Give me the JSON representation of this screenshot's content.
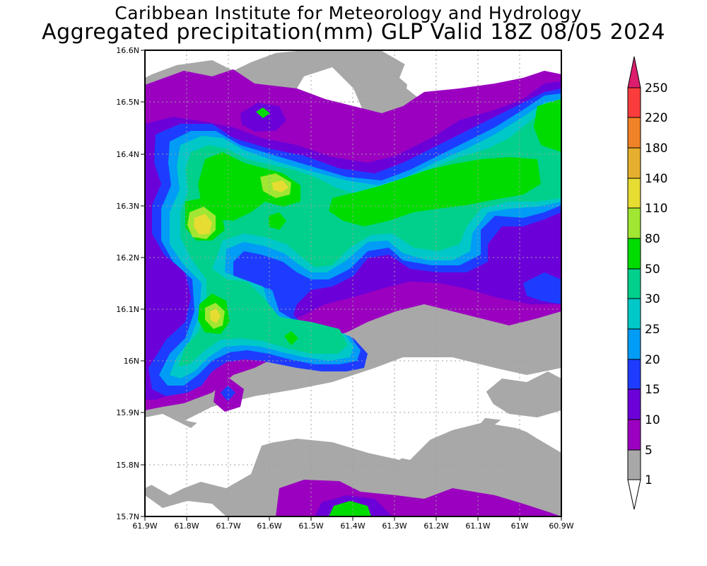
{
  "title": {
    "line1": "Caribbean Institute for Meteorology and Hydrology",
    "line2": "Aggregated precipitation(mm) GLP Valid 18Z 08/05 2024"
  },
  "map": {
    "lon_range": [
      -61.9,
      -60.9
    ],
    "lat_range": [
      15.7,
      16.6
    ],
    "grid": true,
    "x_tick_labels": [
      "61.9W",
      "61.8W",
      "61.7W",
      "61.6W",
      "61.5W",
      "61.4W",
      "61.3W",
      "61.2W",
      "61.1W",
      "61W",
      "60.9W"
    ],
    "y_tick_labels": [
      "15.7N",
      "15.8N",
      "15.9N",
      "16N",
      "16.1N",
      "16.2N",
      "16.3N",
      "16.4N",
      "16.5N",
      "16.6N"
    ]
  },
  "colorbar": {
    "levels": [
      "1",
      "5",
      "10",
      "15",
      "20",
      "25",
      "30",
      "50",
      "80",
      "110",
      "140",
      "180",
      "220",
      "250"
    ],
    "colors": [
      "#ffffff",
      "#a8a8a8",
      "#9b00c0",
      "#6c00d8",
      "#1e3cff",
      "#009cf5",
      "#00c8c8",
      "#00d08c",
      "#00dc00",
      "#a0e632",
      "#e6dc32",
      "#e6af2d",
      "#f08228",
      "#fa3c3c",
      "#dc1e6e"
    ]
  }
}
